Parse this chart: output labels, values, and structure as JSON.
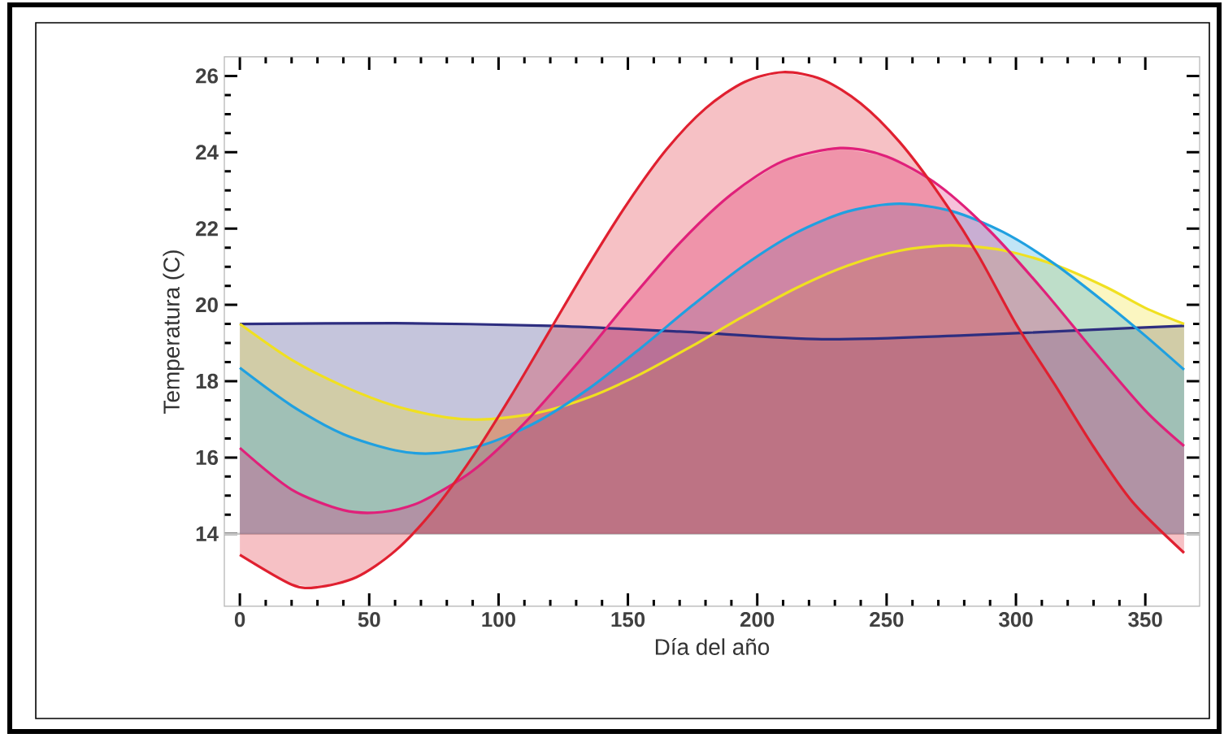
{
  "chart_data": {
    "type": "line",
    "xlabel": "Día del año",
    "ylabel": "Temperatura (C)",
    "xlim": [
      -6,
      371
    ],
    "ylim": [
      12.1,
      26.5
    ],
    "xticks": [
      0,
      50,
      100,
      150,
      200,
      250,
      300,
      350
    ],
    "yticks": [
      14,
      16,
      18,
      20,
      22,
      24,
      26
    ],
    "grid": false,
    "marker": "none",
    "line_style": "solid",
    "ref_lines": [
      {
        "axis": "y",
        "value": 14,
        "color": "#c8c8c8"
      }
    ],
    "series": [
      {
        "color": "#2e2e80",
        "x": [
          0,
          60,
          120,
          170,
          225,
          280,
          330,
          365
        ],
        "values": [
          19.5,
          19.52,
          19.45,
          19.3,
          19.1,
          19.2,
          19.35,
          19.45
        ],
        "lower": [
          14,
          14,
          14,
          14,
          14,
          14,
          14,
          14
        ],
        "upper": [
          19.5,
          19.52,
          19.45,
          19.3,
          19.1,
          19.2,
          19.35,
          19.45
        ]
      },
      {
        "color": "#f0e020",
        "x": [
          0,
          20,
          40,
          60,
          80,
          95,
          115,
          135,
          155,
          175,
          195,
          215,
          235,
          255,
          275,
          295,
          315,
          335,
          350,
          365
        ],
        "values": [
          19.5,
          18.56,
          17.87,
          17.35,
          17.05,
          17.0,
          17.17,
          17.58,
          18.19,
          18.93,
          19.71,
          20.44,
          21.03,
          21.42,
          21.56,
          21.43,
          21.05,
          20.46,
          19.92,
          19.5
        ],
        "lower": [
          14,
          14,
          14,
          14,
          14,
          14,
          14,
          14,
          14,
          14,
          14,
          14,
          14,
          14,
          14,
          14,
          14,
          14,
          14,
          14
        ],
        "upper": [
          19.5,
          18.56,
          17.87,
          17.35,
          17.05,
          17.0,
          17.17,
          17.58,
          18.19,
          18.93,
          19.71,
          20.44,
          21.03,
          21.42,
          21.56,
          21.43,
          21.05,
          20.46,
          19.92,
          19.5
        ]
      },
      {
        "color": "#20a0e0",
        "x": [
          0,
          20,
          40,
          60,
          75,
          95,
          115,
          135,
          155,
          175,
          195,
          215,
          235,
          255,
          275,
          295,
          315,
          335,
          350,
          365
        ],
        "values": [
          18.35,
          17.36,
          16.61,
          16.19,
          16.11,
          16.35,
          16.94,
          17.81,
          18.87,
          19.99,
          21.04,
          21.89,
          22.45,
          22.65,
          22.46,
          21.91,
          21.07,
          20.03,
          19.19,
          18.3
        ],
        "lower": [
          14,
          14,
          14,
          14,
          14,
          14,
          14,
          14,
          14,
          14,
          14,
          14,
          14,
          14,
          14,
          14,
          14,
          14,
          14,
          14
        ],
        "upper": [
          18.35,
          17.36,
          16.61,
          16.19,
          16.11,
          16.35,
          16.94,
          17.81,
          18.87,
          19.99,
          21.04,
          21.89,
          22.45,
          22.65,
          22.46,
          21.91,
          21.07,
          20.03,
          19.19,
          18.3
        ]
      },
      {
        "color": "#e0207a",
        "x": [
          0,
          20,
          40,
          55,
          70,
          90,
          110,
          130,
          150,
          170,
          190,
          210,
          232,
          250,
          270,
          290,
          310,
          330,
          350,
          365
        ],
        "values": [
          16.25,
          15.16,
          14.62,
          14.57,
          14.84,
          15.65,
          16.9,
          18.43,
          20.07,
          21.62,
          22.9,
          23.77,
          24.11,
          23.89,
          23.14,
          21.93,
          20.43,
          18.8,
          17.23,
          16.3
        ],
        "lower": [
          14,
          14,
          14,
          14,
          14,
          14,
          14,
          14,
          14,
          14,
          14,
          14,
          14,
          14,
          14,
          14,
          14,
          14,
          14,
          14
        ],
        "upper": [
          16.25,
          15.16,
          14.62,
          14.57,
          14.84,
          15.65,
          16.9,
          18.43,
          20.07,
          21.62,
          22.9,
          23.77,
          24.11,
          23.89,
          23.14,
          21.93,
          20.43,
          18.8,
          17.23,
          16.3
        ]
      },
      {
        "color": "#e02030",
        "x": [
          0,
          20,
          30,
          45,
          60,
          75,
          90,
          105,
          120,
          135,
          150,
          165,
          180,
          195,
          210,
          225,
          240,
          255,
          270,
          285,
          300,
          315,
          330,
          345,
          365
        ],
        "values": [
          13.45,
          12.67,
          12.6,
          12.86,
          13.55,
          14.63,
          16.02,
          17.63,
          19.35,
          21.07,
          22.68,
          24.08,
          25.15,
          25.84,
          26.1,
          25.91,
          25.28,
          24.27,
          22.93,
          21.35,
          19.5,
          17.91,
          16.28,
          14.84,
          13.5
        ],
        "lower": [
          14,
          14,
          14,
          14,
          14,
          14,
          14,
          14,
          14,
          14,
          14,
          14,
          14,
          14,
          14,
          14,
          14,
          14,
          14,
          14,
          14,
          14,
          14,
          14,
          14
        ],
        "upper": [
          13.45,
          12.67,
          12.6,
          12.86,
          13.55,
          14.63,
          16.02,
          17.63,
          19.35,
          21.07,
          22.68,
          24.08,
          25.15,
          25.84,
          26.1,
          25.91,
          25.28,
          24.27,
          22.93,
          21.35,
          19.5,
          17.91,
          16.28,
          14.84,
          13.5
        ]
      }
    ]
  }
}
